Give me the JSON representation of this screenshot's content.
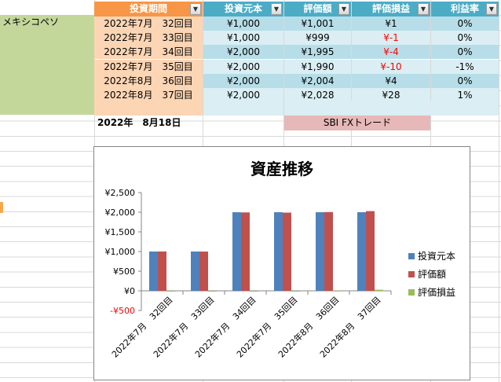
{
  "table": {
    "headers": [
      {
        "label": "投資期間",
        "color": "#f79646"
      },
      {
        "label": "投資元本",
        "color": "#4bacc6"
      },
      {
        "label": "評価額",
        "color": "#4bacc6"
      },
      {
        "label": "評価損益",
        "color": "#4bacc6"
      },
      {
        "label": "利益率",
        "color": "#4bacc6"
      }
    ],
    "dropdown_icon": "▼",
    "category_label": "メキシコペソ",
    "rows": [
      {
        "period": "2022年7月　32回目",
        "principal": "¥1,000",
        "value": "¥1,001",
        "pl": "¥1",
        "rate": "0%",
        "neg": false
      },
      {
        "period": "2022年7月　33回目",
        "principal": "¥1,000",
        "value": "¥999",
        "pl": "¥-1",
        "rate": "0%",
        "neg": true
      },
      {
        "period": "2022年7月　34回目",
        "principal": "¥2,000",
        "value": "¥1,995",
        "pl": "¥-4",
        "rate": "0%",
        "neg": true
      },
      {
        "period": "2022年7月　35回目",
        "principal": "¥2,000",
        "value": "¥1,990",
        "pl": "¥-10",
        "rate": "-1%",
        "neg": true
      },
      {
        "period": "2022年8月　36回目",
        "principal": "¥2,000",
        "value": "¥2,004",
        "pl": "¥4",
        "rate": "0%",
        "neg": false
      },
      {
        "period": "2022年8月　37回目",
        "principal": "¥2,000",
        "value": "¥2,028",
        "pl": "¥28",
        "rate": "1%",
        "neg": false
      }
    ],
    "date_label": "2022年　8月18日",
    "broker_label": "SBI FXトレード"
  },
  "chart_data": {
    "type": "bar",
    "title": "資産推移",
    "categories": [
      "2022年7月　32回目",
      "2022年7月　33回目",
      "2022年7月　34回目",
      "2022年7月　35回目",
      "2022年8月　36回目",
      "2022年8月　37回目"
    ],
    "series": [
      {
        "name": "投資元本",
        "color": "#4f81bd",
        "values": [
          1000,
          1000,
          2000,
          2000,
          2000,
          2000
        ]
      },
      {
        "name": "評価額",
        "color": "#c0504d",
        "values": [
          1001,
          999,
          1995,
          1990,
          2004,
          2028
        ]
      },
      {
        "name": "評価損益",
        "color": "#9bbb59",
        "values": [
          1,
          -1,
          -4,
          -10,
          4,
          28
        ]
      }
    ],
    "ylim": [
      -500,
      2500
    ],
    "yticks": [
      {
        "v": 2500,
        "label": "¥2,500",
        "neg": false
      },
      {
        "v": 2000,
        "label": "¥2,000",
        "neg": false
      },
      {
        "v": 1500,
        "label": "¥1,500",
        "neg": false
      },
      {
        "v": 1000,
        "label": "¥1,000",
        "neg": false
      },
      {
        "v": 500,
        "label": "¥500",
        "neg": false
      },
      {
        "v": 0,
        "label": "¥0",
        "neg": false
      },
      {
        "v": -500,
        "label": "-¥500",
        "neg": true
      }
    ],
    "grid": false,
    "legend": "right"
  }
}
